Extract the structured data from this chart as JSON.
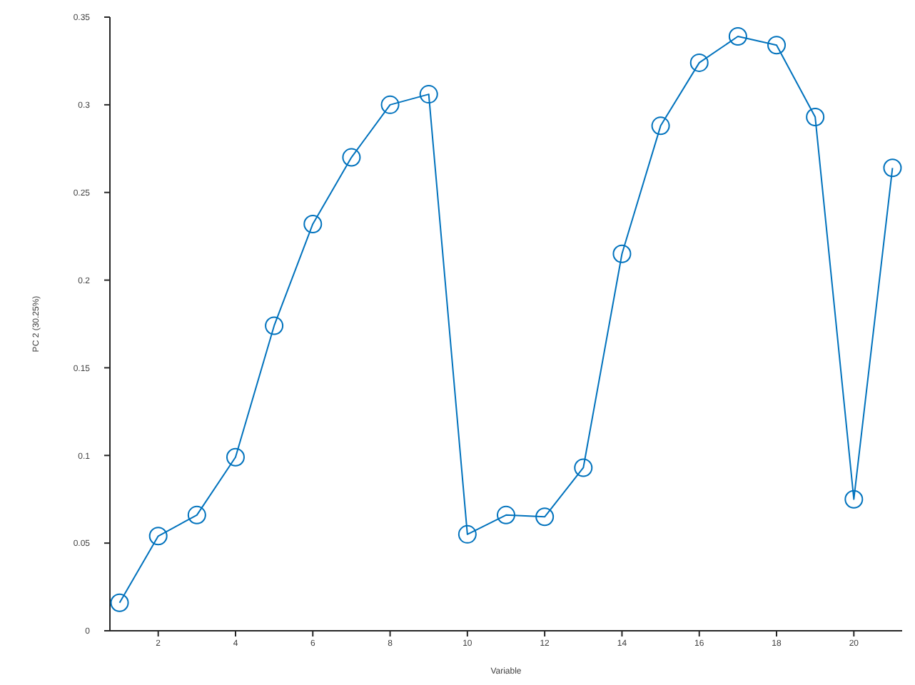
{
  "chart_data": {
    "type": "line",
    "xlabel": "Variable",
    "ylabel": "PC 2 (30.25%)",
    "x": [
      1,
      2,
      3,
      4,
      5,
      6,
      7,
      8,
      9,
      10,
      11,
      12,
      13,
      14,
      15,
      16,
      17,
      18,
      19,
      20,
      21
    ],
    "series": [
      {
        "color": "#0072bd",
        "values": [
          0.016,
          0.054,
          0.066,
          0.099,
          0.174,
          0.232,
          0.27,
          0.3,
          0.306,
          0.055,
          0.066,
          0.065,
          0.093,
          0.215,
          0.288,
          0.324,
          0.339,
          0.334,
          0.293,
          0.075,
          0.264
        ]
      }
    ],
    "xlim": [
      0.75,
      21.25
    ],
    "xticks": [
      2,
      4,
      6,
      8,
      10,
      12,
      14,
      16,
      18,
      20
    ],
    "ylim": [
      0,
      0.35
    ],
    "yticks": [
      0,
      0.05,
      0.1,
      0.15,
      0.2,
      0.25,
      0.3,
      0.35
    ],
    "grid": false,
    "legend": false,
    "marker": "circle",
    "line_style": "solid"
  }
}
